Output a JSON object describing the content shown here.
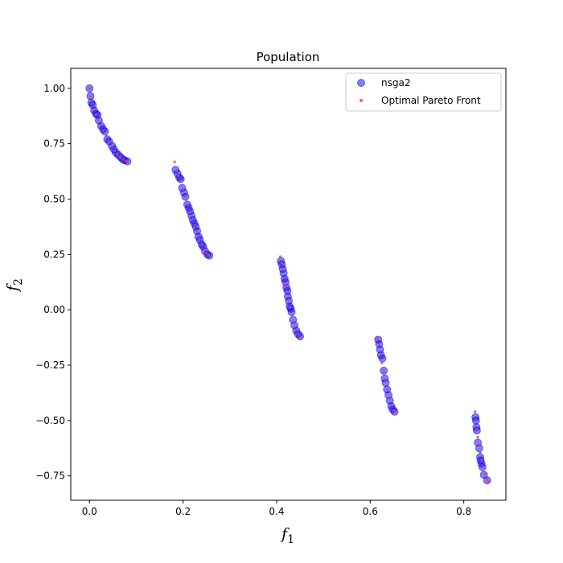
{
  "chart_data": {
    "type": "scatter",
    "title": "Population",
    "xlabel": {
      "base": "f",
      "sub": "1"
    },
    "ylabel": {
      "base": "f",
      "sub": "2"
    },
    "xlim": [
      -0.04,
      0.89
    ],
    "ylim": [
      -0.86,
      1.09
    ],
    "xticks": [
      0.0,
      0.2,
      0.4,
      0.6,
      0.8
    ],
    "xtick_labels": [
      "0.0",
      "0.2",
      "0.4",
      "0.6",
      "0.8"
    ],
    "yticks": [
      -0.75,
      -0.5,
      -0.25,
      0.0,
      0.25,
      0.5,
      0.75,
      1.0
    ],
    "ytick_labels": [
      "−0.75",
      "−0.50",
      "−0.25",
      "0.00",
      "0.25",
      "0.50",
      "0.75",
      "1.00"
    ],
    "grid": false,
    "legend": "top-right",
    "series": [
      {
        "name": "nsga2",
        "color": "#0000ff",
        "marker": "large-circle",
        "points": [
          [
            0.0,
            1.0
          ],
          [
            0.002,
            0.965
          ],
          [
            0.004,
            0.935
          ],
          [
            0.007,
            0.925
          ],
          [
            0.01,
            0.9
          ],
          [
            0.014,
            0.885
          ],
          [
            0.017,
            0.88
          ],
          [
            0.02,
            0.855
          ],
          [
            0.025,
            0.83
          ],
          [
            0.029,
            0.815
          ],
          [
            0.033,
            0.805
          ],
          [
            0.038,
            0.77
          ],
          [
            0.042,
            0.76
          ],
          [
            0.048,
            0.74
          ],
          [
            0.052,
            0.725
          ],
          [
            0.056,
            0.71
          ],
          [
            0.061,
            0.7
          ],
          [
            0.066,
            0.69
          ],
          [
            0.071,
            0.68
          ],
          [
            0.075,
            0.675
          ],
          [
            0.081,
            0.67
          ],
          [
            0.184,
            0.632
          ],
          [
            0.188,
            0.615
          ],
          [
            0.192,
            0.597
          ],
          [
            0.195,
            0.59
          ],
          [
            0.198,
            0.55
          ],
          [
            0.202,
            0.53
          ],
          [
            0.205,
            0.51
          ],
          [
            0.209,
            0.475
          ],
          [
            0.212,
            0.46
          ],
          [
            0.215,
            0.445
          ],
          [
            0.218,
            0.425
          ],
          [
            0.221,
            0.405
          ],
          [
            0.224,
            0.39
          ],
          [
            0.227,
            0.375
          ],
          [
            0.23,
            0.355
          ],
          [
            0.233,
            0.33
          ],
          [
            0.236,
            0.315
          ],
          [
            0.24,
            0.295
          ],
          [
            0.243,
            0.285
          ],
          [
            0.247,
            0.265
          ],
          [
            0.252,
            0.25
          ],
          [
            0.256,
            0.245
          ],
          [
            0.409,
            0.22
          ],
          [
            0.411,
            0.205
          ],
          [
            0.413,
            0.185
          ],
          [
            0.415,
            0.165
          ],
          [
            0.417,
            0.14
          ],
          [
            0.419,
            0.125
          ],
          [
            0.421,
            0.1
          ],
          [
            0.423,
            0.085
          ],
          [
            0.424,
            0.06
          ],
          [
            0.426,
            0.04
          ],
          [
            0.428,
            0.015
          ],
          [
            0.43,
            0.005
          ],
          [
            0.432,
            -0.01
          ],
          [
            0.435,
            -0.045
          ],
          [
            0.438,
            -0.07
          ],
          [
            0.442,
            -0.095
          ],
          [
            0.446,
            -0.11
          ],
          [
            0.45,
            -0.12
          ],
          [
            0.617,
            -0.135
          ],
          [
            0.619,
            -0.155
          ],
          [
            0.621,
            -0.18
          ],
          [
            0.623,
            -0.205
          ],
          [
            0.626,
            -0.22
          ],
          [
            0.629,
            -0.275
          ],
          [
            0.631,
            -0.31
          ],
          [
            0.633,
            -0.33
          ],
          [
            0.636,
            -0.36
          ],
          [
            0.639,
            -0.385
          ],
          [
            0.642,
            -0.41
          ],
          [
            0.645,
            -0.435
          ],
          [
            0.648,
            -0.45
          ],
          [
            0.652,
            -0.46
          ],
          [
            0.825,
            -0.485
          ],
          [
            0.826,
            -0.5
          ],
          [
            0.827,
            -0.53
          ],
          [
            0.828,
            -0.545
          ],
          [
            0.83,
            -0.6
          ],
          [
            0.833,
            -0.625
          ],
          [
            0.835,
            -0.665
          ],
          [
            0.836,
            -0.68
          ],
          [
            0.838,
            -0.695
          ],
          [
            0.84,
            -0.71
          ],
          [
            0.843,
            -0.745
          ],
          [
            0.85,
            -0.77
          ]
        ]
      },
      {
        "name": "Optimal Pareto Front",
        "color": "#ff3b3b",
        "marker": "small-dot",
        "points": [
          [
            0.0,
            1.0
          ],
          [
            0.003,
            0.962
          ],
          [
            0.006,
            0.93
          ],
          [
            0.01,
            0.905
          ],
          [
            0.014,
            0.882
          ],
          [
            0.019,
            0.86
          ],
          [
            0.024,
            0.835
          ],
          [
            0.03,
            0.81
          ],
          [
            0.036,
            0.785
          ],
          [
            0.042,
            0.76
          ],
          [
            0.048,
            0.738
          ],
          [
            0.054,
            0.718
          ],
          [
            0.06,
            0.702
          ],
          [
            0.066,
            0.69
          ],
          [
            0.072,
            0.68
          ],
          [
            0.078,
            0.672
          ],
          [
            0.082,
            0.668
          ],
          [
            0.182,
            0.668
          ],
          [
            0.186,
            0.628
          ],
          [
            0.19,
            0.605
          ],
          [
            0.195,
            0.58
          ],
          [
            0.2,
            0.545
          ],
          [
            0.205,
            0.51
          ],
          [
            0.21,
            0.475
          ],
          [
            0.215,
            0.44
          ],
          [
            0.22,
            0.41
          ],
          [
            0.225,
            0.38
          ],
          [
            0.23,
            0.35
          ],
          [
            0.235,
            0.32
          ],
          [
            0.24,
            0.295
          ],
          [
            0.245,
            0.27
          ],
          [
            0.25,
            0.255
          ],
          [
            0.255,
            0.245
          ],
          [
            0.408,
            0.24
          ],
          [
            0.411,
            0.21
          ],
          [
            0.414,
            0.18
          ],
          [
            0.417,
            0.145
          ],
          [
            0.42,
            0.115
          ],
          [
            0.423,
            0.08
          ],
          [
            0.426,
            0.045
          ],
          [
            0.429,
            0.01
          ],
          [
            0.433,
            -0.025
          ],
          [
            0.437,
            -0.06
          ],
          [
            0.441,
            -0.09
          ],
          [
            0.446,
            -0.11
          ],
          [
            0.451,
            -0.125
          ],
          [
            0.616,
            -0.13
          ],
          [
            0.619,
            -0.16
          ],
          [
            0.622,
            -0.2
          ],
          [
            0.625,
            -0.24
          ],
          [
            0.629,
            -0.28
          ],
          [
            0.633,
            -0.32
          ],
          [
            0.637,
            -0.36
          ],
          [
            0.641,
            -0.4
          ],
          [
            0.645,
            -0.43
          ],
          [
            0.65,
            -0.455
          ],
          [
            0.654,
            -0.462
          ],
          [
            0.824,
            -0.46
          ],
          [
            0.826,
            -0.5
          ],
          [
            0.828,
            -0.54
          ],
          [
            0.83,
            -0.575
          ],
          [
            0.832,
            -0.61
          ],
          [
            0.835,
            -0.645
          ],
          [
            0.838,
            -0.68
          ],
          [
            0.841,
            -0.71
          ],
          [
            0.845,
            -0.74
          ],
          [
            0.85,
            -0.765
          ],
          [
            0.853,
            -0.775
          ]
        ]
      }
    ]
  }
}
